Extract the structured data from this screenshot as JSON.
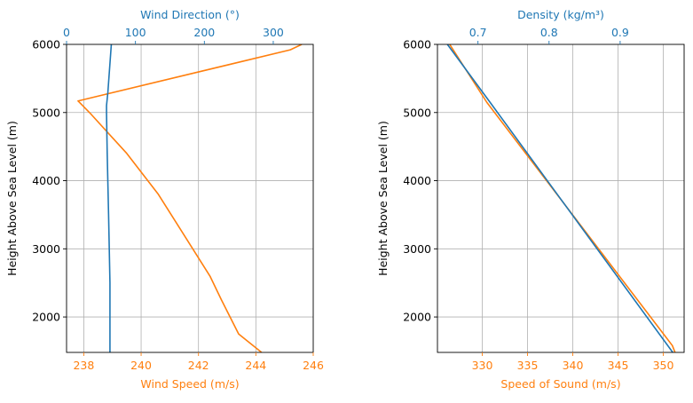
{
  "colors": {
    "blue": "#1f77b4",
    "orange": "#ff7f0e",
    "grid": "#b0b0b0",
    "axis": "#000000"
  },
  "chart_data": [
    {
      "type": "line",
      "ylabel": "Height Above Sea Level (m)",
      "ylim": [
        1480,
        6000
      ],
      "yticks": [
        2000,
        3000,
        4000,
        5000,
        6000
      ],
      "grid": true,
      "bottom_axis": {
        "label": "Wind Speed (m/s)",
        "color": "orange",
        "lim": [
          237.4,
          246.0
        ],
        "ticks": [
          238,
          240,
          242,
          244,
          246
        ],
        "tick_labels": [
          "238",
          "240",
          "242",
          "244",
          "246"
        ]
      },
      "top_axis": {
        "label": "Wind Direction (°)",
        "color": "blue",
        "lim": [
          0,
          358
        ],
        "ticks": [
          0,
          100,
          200,
          300
        ],
        "tick_labels": [
          "0",
          "100",
          "200",
          "300"
        ]
      },
      "series": [
        {
          "axis": "bottom",
          "color": "orange",
          "points": [
            [
              244.2,
              1480
            ],
            [
              243.4,
              1750
            ],
            [
              242.8,
              2250
            ],
            [
              242.4,
              2600
            ],
            [
              240.6,
              3800
            ],
            [
              239.5,
              4400
            ],
            [
              238.2,
              5000
            ],
            [
              237.8,
              5170
            ],
            [
              245.2,
              5920
            ],
            [
              245.6,
              6000
            ]
          ]
        },
        {
          "axis": "top",
          "color": "blue",
          "points": [
            [
              63,
              1480
            ],
            [
              63,
              2500
            ],
            [
              61,
              3500
            ],
            [
              59,
              4400
            ],
            [
              58,
              5000
            ],
            [
              58,
              5100
            ],
            [
              60,
              5300
            ],
            [
              65,
              6000
            ]
          ]
        }
      ]
    },
    {
      "type": "line",
      "ylabel": "Height Above Sea Level (m)",
      "ylim": [
        1480,
        6000
      ],
      "yticks": [
        2000,
        3000,
        4000,
        5000,
        6000
      ],
      "grid": true,
      "bottom_axis": {
        "label": "Speed of Sound (m/s)",
        "color": "orange",
        "lim": [
          325.05,
          352.3
        ],
        "ticks": [
          330,
          335,
          340,
          345,
          350
        ],
        "tick_labels": [
          "330",
          "335",
          "340",
          "345",
          "350"
        ]
      },
      "top_axis": {
        "label": "Density (kg/m³)",
        "color": "blue",
        "lim": [
          0.643,
          0.99
        ],
        "ticks": [
          0.7,
          0.8,
          0.9
        ],
        "tick_labels": [
          "0.7",
          "0.8",
          "0.9"
        ]
      },
      "series": [
        {
          "axis": "bottom",
          "color": "orange",
          "points": [
            [
              326.4,
              6000
            ],
            [
              330.5,
              5150
            ],
            [
              351.0,
              1580
            ],
            [
              351.3,
              1480
            ]
          ]
        },
        {
          "axis": "top",
          "color": "blue",
          "points": [
            [
              0.657,
              6000
            ],
            [
              0.717,
              5150
            ],
            [
              0.974,
              1480
            ]
          ]
        }
      ]
    }
  ]
}
